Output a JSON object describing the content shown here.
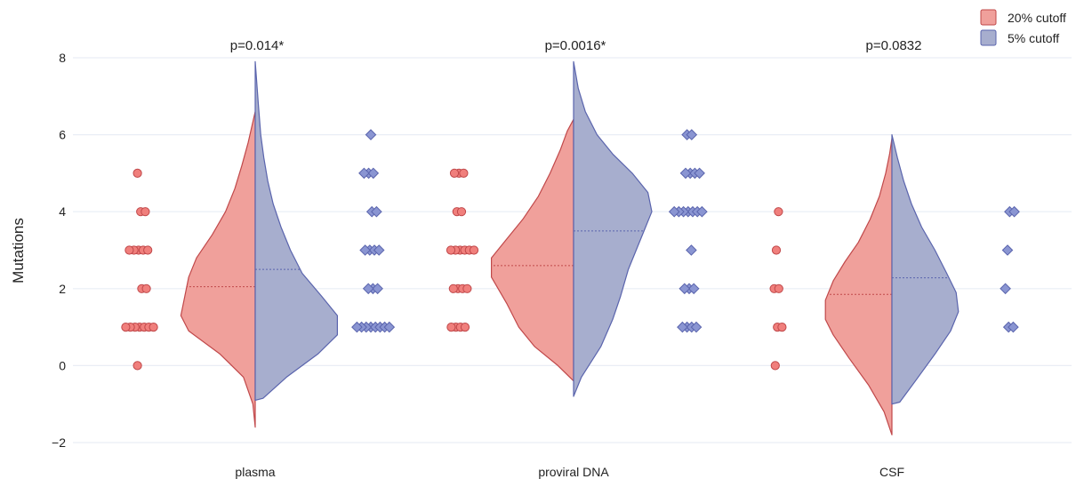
{
  "chart_data": {
    "type": "violin",
    "ylabel": "Mutations",
    "ylim": [
      -2,
      8
    ],
    "yticks": [
      -2,
      0,
      2,
      4,
      6,
      8
    ],
    "grid": true,
    "legend_position": "top-right",
    "categories": [
      "plasma",
      "proviral DNA",
      "CSF"
    ],
    "annotations": [
      "p=0.014*",
      "p=0.0016*",
      "p=0.0832"
    ],
    "series": [
      {
        "name": "20% cutoff",
        "fill": "#f0a09b",
        "stroke": "#c0484a",
        "point_fill": "#f07f7c",
        "marker": "circle"
      },
      {
        "name": "5% cutoff",
        "fill": "#a7aece",
        "stroke": "#5a64ad",
        "point_fill": "#8a95d2",
        "marker": "diamond"
      }
    ],
    "points": [
      {
        "cutoff_20": [
          5,
          4,
          4,
          3,
          3,
          3,
          3,
          3,
          2,
          2,
          1,
          1,
          1,
          1,
          1,
          1,
          1,
          0
        ],
        "cutoff_5": [
          6,
          5,
          5,
          5,
          4,
          4,
          3,
          3,
          3,
          3,
          2,
          2,
          2,
          1,
          1,
          1,
          1,
          1,
          1,
          1,
          1
        ]
      },
      {
        "cutoff_20": [
          5,
          5,
          5,
          4,
          4,
          3,
          3,
          3,
          3,
          3,
          3,
          2,
          2,
          2,
          2,
          1,
          1,
          1,
          1
        ],
        "cutoff_5": [
          6,
          6,
          5,
          5,
          5,
          5,
          4,
          4,
          4,
          4,
          4,
          4,
          4,
          3,
          2,
          2,
          2,
          1,
          1,
          1,
          1
        ]
      },
      {
        "cutoff_20": [
          4,
          3,
          2,
          2,
          1,
          1,
          0
        ],
        "cutoff_5": [
          4,
          4,
          3,
          2,
          1,
          1
        ]
      }
    ],
    "means": [
      {
        "cutoff_20": 2.05,
        "cutoff_5": 2.5
      },
      {
        "cutoff_20": 2.6,
        "cutoff_5": 3.5
      },
      {
        "cutoff_20": 1.85,
        "cutoff_5": 2.28
      }
    ],
    "density": [
      {
        "cutoff_20": {
          "range": [
            -1.6,
            6.6
          ],
          "profile": [
            [
              -1.6,
              0
            ],
            [
              -1.0,
              0.3
            ],
            [
              -0.3,
              1.5
            ],
            [
              0.3,
              4.5
            ],
            [
              0.9,
              8.5
            ],
            [
              1.3,
              9.5
            ],
            [
              1.8,
              9.0
            ],
            [
              2.3,
              8.5
            ],
            [
              2.8,
              7.5
            ],
            [
              3.4,
              5.5
            ],
            [
              4.0,
              3.8
            ],
            [
              4.6,
              2.6
            ],
            [
              5.2,
              1.7
            ],
            [
              5.8,
              0.9
            ],
            [
              6.6,
              0
            ]
          ]
        },
        "cutoff_5": {
          "range": [
            -0.9,
            7.9
          ],
          "profile": [
            [
              -0.9,
              0
            ],
            [
              -0.85,
              1.0
            ],
            [
              -0.3,
              4.0
            ],
            [
              0.3,
              8.0
            ],
            [
              0.8,
              10.5
            ],
            [
              1.3,
              10.5
            ],
            [
              1.8,
              8.5
            ],
            [
              2.4,
              6.0
            ],
            [
              3.0,
              4.5
            ],
            [
              3.6,
              3.3
            ],
            [
              4.2,
              2.3
            ],
            [
              4.8,
              1.6
            ],
            [
              5.4,
              1.1
            ],
            [
              6.0,
              0.7
            ],
            [
              6.8,
              0.4
            ],
            [
              7.9,
              0
            ]
          ]
        }
      },
      {
        "cutoff_20": {
          "range": [
            -0.4,
            6.4
          ],
          "profile": [
            [
              -0.4,
              0
            ],
            [
              0,
              2.0
            ],
            [
              0.5,
              5.0
            ],
            [
              1.0,
              7.0
            ],
            [
              1.6,
              8.5
            ],
            [
              2.3,
              10.5
            ],
            [
              2.8,
              10.5
            ],
            [
              3.3,
              8.5
            ],
            [
              3.8,
              6.5
            ],
            [
              4.4,
              4.5
            ],
            [
              5.0,
              3.0
            ],
            [
              5.6,
              1.7
            ],
            [
              6.1,
              0.8
            ],
            [
              6.4,
              0
            ]
          ]
        },
        "cutoff_5": {
          "range": [
            -0.8,
            7.9
          ],
          "profile": [
            [
              -0.8,
              0
            ],
            [
              -0.3,
              1.0
            ],
            [
              0.5,
              3.5
            ],
            [
              1.2,
              5.0
            ],
            [
              1.8,
              6.0
            ],
            [
              2.5,
              7.0
            ],
            [
              3.0,
              8.0
            ],
            [
              3.5,
              9.0
            ],
            [
              4.0,
              10.0
            ],
            [
              4.5,
              9.5
            ],
            [
              5.0,
              7.5
            ],
            [
              5.5,
              5.0
            ],
            [
              6.0,
              3.0
            ],
            [
              6.6,
              1.5
            ],
            [
              7.2,
              0.6
            ],
            [
              7.9,
              0
            ]
          ]
        }
      },
      {
        "cutoff_20": {
          "range": [
            -1.8,
            5.9
          ],
          "profile": [
            [
              -1.8,
              0
            ],
            [
              -1.2,
              1.0
            ],
            [
              -0.5,
              3.0
            ],
            [
              0.2,
              5.5
            ],
            [
              0.8,
              7.5
            ],
            [
              1.2,
              8.5
            ],
            [
              1.7,
              8.5
            ],
            [
              2.2,
              7.5
            ],
            [
              2.7,
              6.0
            ],
            [
              3.2,
              4.3
            ],
            [
              3.8,
              2.8
            ],
            [
              4.4,
              1.6
            ],
            [
              5.0,
              0.8
            ],
            [
              5.5,
              0.3
            ],
            [
              5.9,
              0
            ]
          ]
        },
        "cutoff_5": {
          "range": [
            -1.0,
            6.0
          ],
          "profile": [
            [
              -1.0,
              0
            ],
            [
              -0.95,
              1.0
            ],
            [
              -0.4,
              3.0
            ],
            [
              0.3,
              5.5
            ],
            [
              0.9,
              7.5
            ],
            [
              1.4,
              8.5
            ],
            [
              1.9,
              8.2
            ],
            [
              2.4,
              7.0
            ],
            [
              3.0,
              5.5
            ],
            [
              3.6,
              3.8
            ],
            [
              4.2,
              2.5
            ],
            [
              4.8,
              1.5
            ],
            [
              5.4,
              0.7
            ],
            [
              6.0,
              0
            ]
          ]
        }
      }
    ]
  }
}
